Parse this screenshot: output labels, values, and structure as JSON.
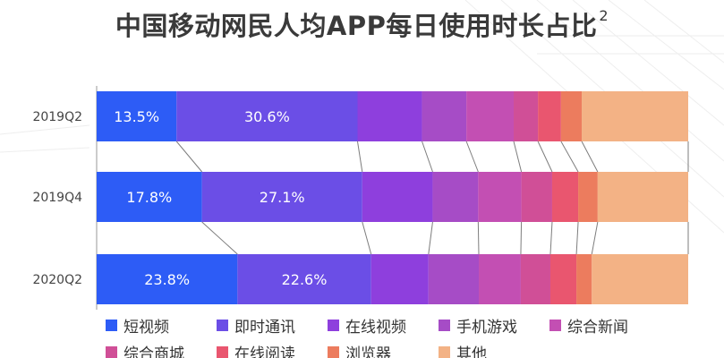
{
  "title": "中国移动网民人均APP每日使用时长占比",
  "title_sup": "2",
  "chart_data": {
    "type": "bar",
    "orientation": "horizontal",
    "stacked": true,
    "normalized": "percent",
    "categories": [
      "2019Q2",
      "2019Q4",
      "2020Q2"
    ],
    "series": [
      {
        "name": "短视频",
        "color": "#2d5cf6",
        "values": [
          13.5,
          17.8,
          23.8
        ],
        "labels": [
          "13.5%",
          "17.8%",
          "23.8%"
        ]
      },
      {
        "name": "即时通讯",
        "color": "#6b4ee6",
        "values": [
          30.6,
          27.1,
          22.6
        ],
        "labels": [
          "30.6%",
          "27.1%",
          "22.6%"
        ]
      },
      {
        "name": "在线视频",
        "color": "#8e3fdd",
        "values": [
          10.9,
          11.9,
          9.7
        ],
        "labels": [
          "",
          "",
          ""
        ]
      },
      {
        "name": "手机游戏",
        "color": "#a64cc6",
        "values": [
          7.5,
          7.7,
          8.5
        ],
        "labels": [
          "",
          "",
          ""
        ]
      },
      {
        "name": "综合新闻",
        "color": "#c34fb3",
        "values": [
          8.0,
          7.3,
          7.1
        ],
        "labels": [
          "",
          "",
          ""
        ]
      },
      {
        "name": "综合商城",
        "color": "#d04f97",
        "values": [
          4.1,
          5.2,
          5.0
        ],
        "labels": [
          "",
          "",
          ""
        ]
      },
      {
        "name": "在线阅读",
        "color": "#e9566f",
        "values": [
          3.9,
          4.4,
          4.4
        ],
        "labels": [
          "",
          "",
          ""
        ]
      },
      {
        "name": "浏览器",
        "color": "#ec7c5e",
        "values": [
          3.5,
          3.3,
          2.6
        ],
        "labels": [
          "",
          "",
          ""
        ]
      },
      {
        "name": "其他",
        "color": "#f3b285",
        "values": [
          18.0,
          15.3,
          16.3
        ],
        "labels": [
          "",
          "",
          ""
        ]
      }
    ],
    "xlim": [
      0,
      100
    ],
    "grid": false,
    "legend_position": "bottom"
  }
}
